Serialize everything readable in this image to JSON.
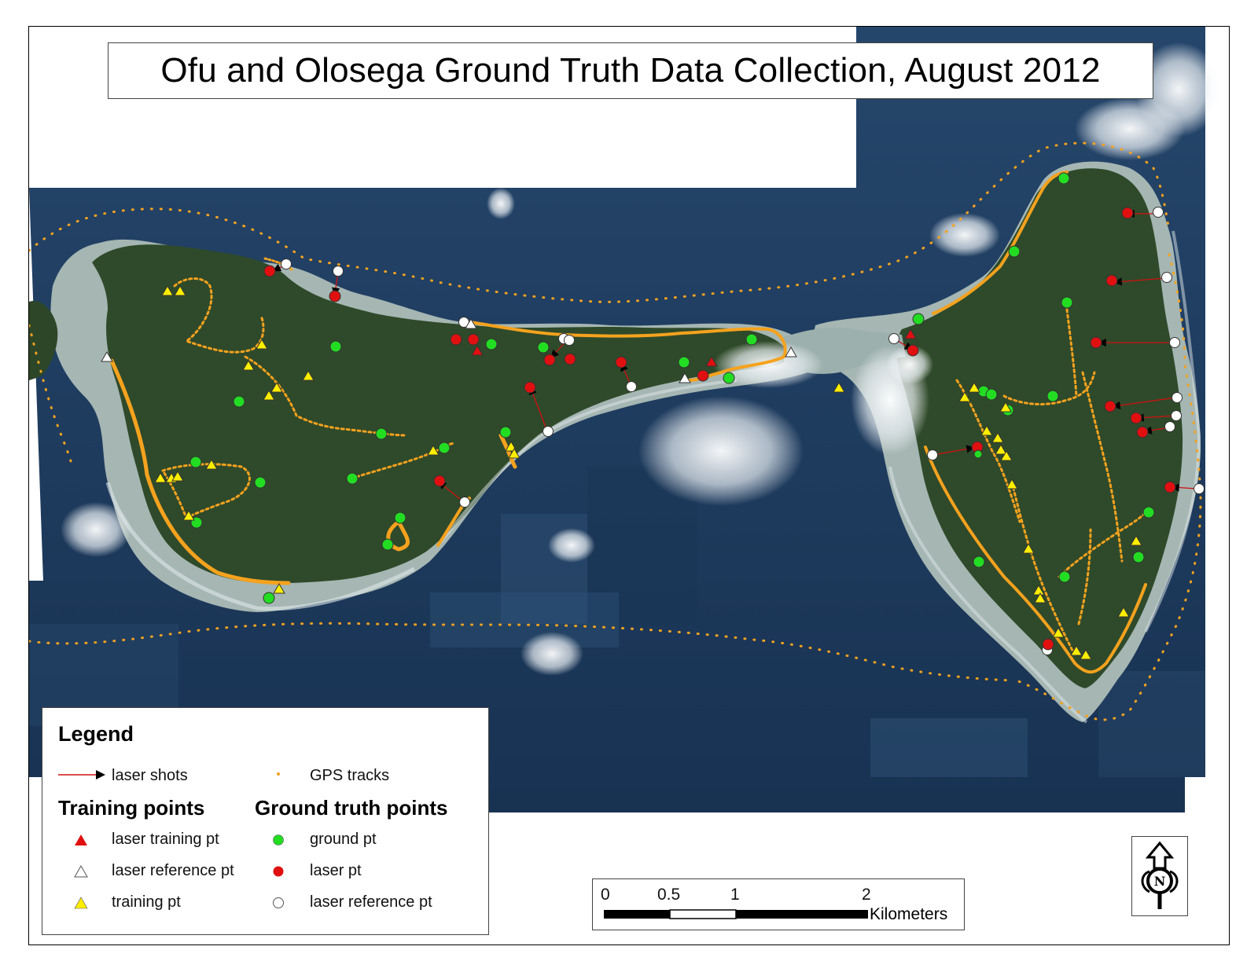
{
  "title": "Ofu and Olosega Ground Truth Data Collection, August 2012",
  "legend": {
    "title": "Legend",
    "laser_shots": "laser shots",
    "gps_tracks": "GPS tracks",
    "training_heading": "Training points",
    "ground_truth_heading": "Ground truth points",
    "laser_training_pt": "laser training pt",
    "laser_reference_pt_triangle": "laser reference pt",
    "training_pt": "training pt",
    "ground_pt": "ground pt",
    "laser_pt": "laser pt",
    "laser_reference_pt_circle": "laser reference pt"
  },
  "scale": {
    "ticks": [
      "0",
      "0.5",
      "1",
      "2"
    ],
    "unit": "Kilometers"
  },
  "colors": {
    "sea": "#1d3a5c",
    "land": "#2f4a2a",
    "reef": "#9fb3b2",
    "gps": "#f5a21e",
    "laser_pt": "#e01010",
    "ground_pt": "#22dd22",
    "training_pt": "#ffee00"
  },
  "north_arrow_icon": "north-arrow-icon"
}
